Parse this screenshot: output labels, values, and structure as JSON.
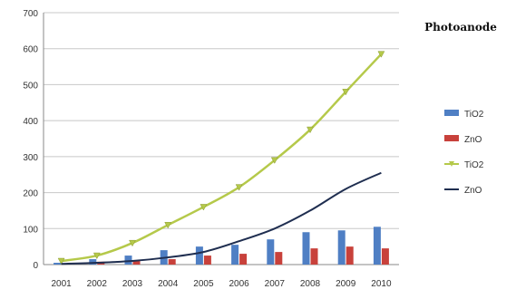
{
  "chart_data": {
    "type": "bar",
    "title": "Photoanode",
    "xlabel": "",
    "ylabel": "",
    "categories": [
      "2001",
      "2002",
      "2003",
      "2004",
      "2005",
      "2006",
      "2007",
      "2008",
      "2009",
      "2010"
    ],
    "y_ticks": [
      "0",
      "100",
      "200",
      "300",
      "400",
      "500",
      "600",
      "700"
    ],
    "ylim": [
      0,
      700
    ],
    "grid": true,
    "legend_position": "right",
    "series": [
      {
        "name": "TiO2",
        "kind": "bar",
        "color": "#4f7fc4",
        "values": [
          5,
          15,
          25,
          40,
          50,
          55,
          70,
          90,
          95,
          105
        ]
      },
      {
        "name": "ZnO",
        "kind": "bar",
        "color": "#c8413b",
        "values": [
          3,
          8,
          10,
          15,
          25,
          30,
          35,
          45,
          50,
          45
        ]
      },
      {
        "name": "TiO2",
        "kind": "line",
        "color": "#b5c94a",
        "values": [
          10,
          25,
          60,
          110,
          160,
          215,
          290,
          375,
          480,
          585
        ]
      },
      {
        "name": "ZnO",
        "kind": "line",
        "color": "#1f2e50",
        "values": [
          2,
          5,
          10,
          20,
          35,
          65,
          100,
          150,
          210,
          255
        ]
      }
    ]
  }
}
